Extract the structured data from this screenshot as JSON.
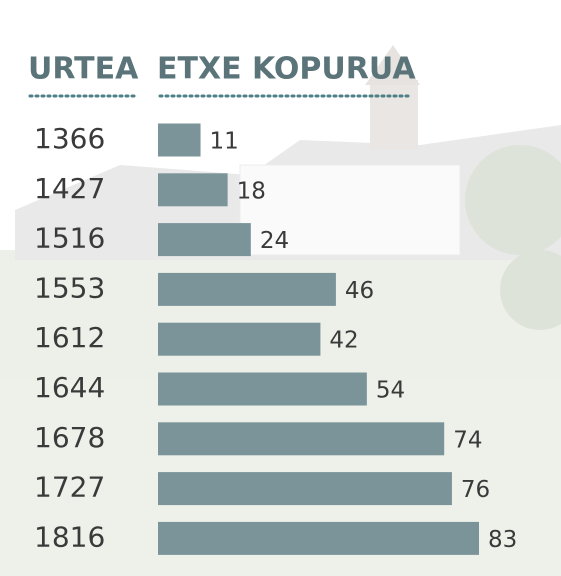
{
  "chart_data": {
    "type": "bar",
    "orientation": "horizontal",
    "category_header": "URTEA",
    "value_header": "ETXE KOPURUA",
    "categories": [
      "1366",
      "1427",
      "1516",
      "1553",
      "1612",
      "1644",
      "1678",
      "1727",
      "1816"
    ],
    "values": [
      11,
      18,
      24,
      46,
      42,
      54,
      74,
      76,
      83
    ],
    "color": "#7b9499"
  }
}
